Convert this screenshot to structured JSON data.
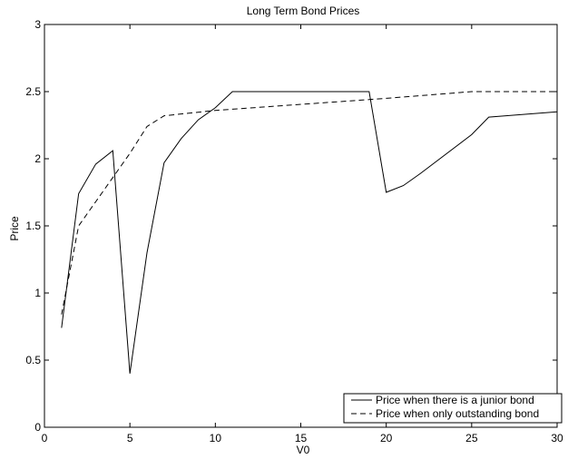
{
  "chart_data": {
    "type": "line",
    "title": "Long Term Bond Prices",
    "xlabel": "V0",
    "ylabel": "Price",
    "xlim": [
      0,
      30
    ],
    "ylim": [
      0,
      3
    ],
    "xticks": [
      0,
      5,
      10,
      15,
      20,
      25,
      30
    ],
    "yticks": [
      0,
      0.5,
      1,
      1.5,
      2,
      2.5,
      3
    ],
    "ytick_labels": [
      "0",
      "0.5",
      "1",
      "1.5",
      "2",
      "2.5",
      "3"
    ],
    "grid": false,
    "legend": {
      "placement": "bottom-right"
    },
    "series": [
      {
        "name": "Price when there is a junior bond",
        "style": "solid",
        "color": "#000000",
        "x": [
          1,
          2,
          3,
          4,
          5,
          6,
          7,
          8,
          9,
          10,
          11,
          19,
          20,
          21,
          22,
          25,
          26,
          30
        ],
        "y": [
          0.74,
          1.74,
          1.96,
          2.06,
          0.4,
          1.3,
          1.97,
          2.15,
          2.29,
          2.38,
          2.5,
          2.5,
          1.75,
          1.8,
          1.89,
          2.18,
          2.31,
          2.35
        ]
      },
      {
        "name": "Price when only outstanding bond",
        "style": "dashed",
        "color": "#000000",
        "x": [
          1,
          2,
          3,
          4,
          5,
          6,
          7,
          10,
          20,
          25,
          30
        ],
        "y": [
          0.84,
          1.5,
          1.68,
          1.86,
          2.04,
          2.24,
          2.32,
          2.36,
          2.45,
          2.5,
          2.5
        ]
      }
    ]
  }
}
